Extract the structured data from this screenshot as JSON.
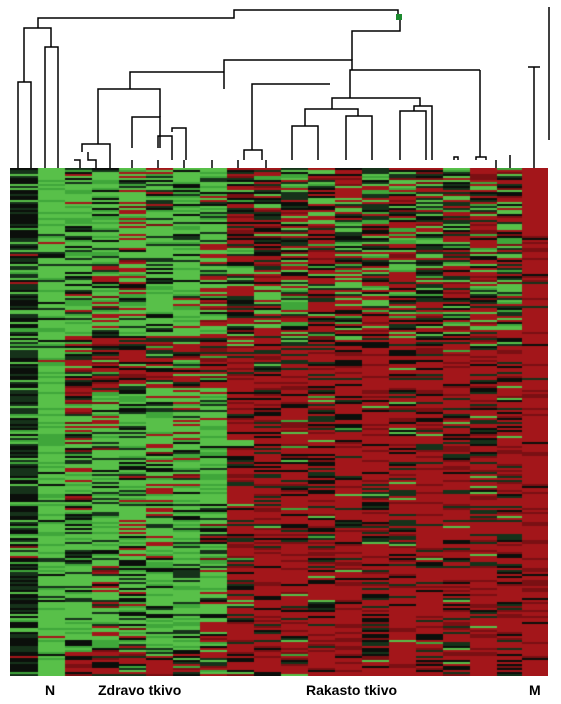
{
  "labels": {
    "n": "N",
    "zdravo": "Zdravo tkivo",
    "rakasto": "Rakasto tkivo",
    "m": "M"
  },
  "colors": {
    "background": "#ffffff",
    "green": "#58c049",
    "red": "#a3161a",
    "black": "#0b0f0b",
    "dendrogram": "#000000"
  }
}
